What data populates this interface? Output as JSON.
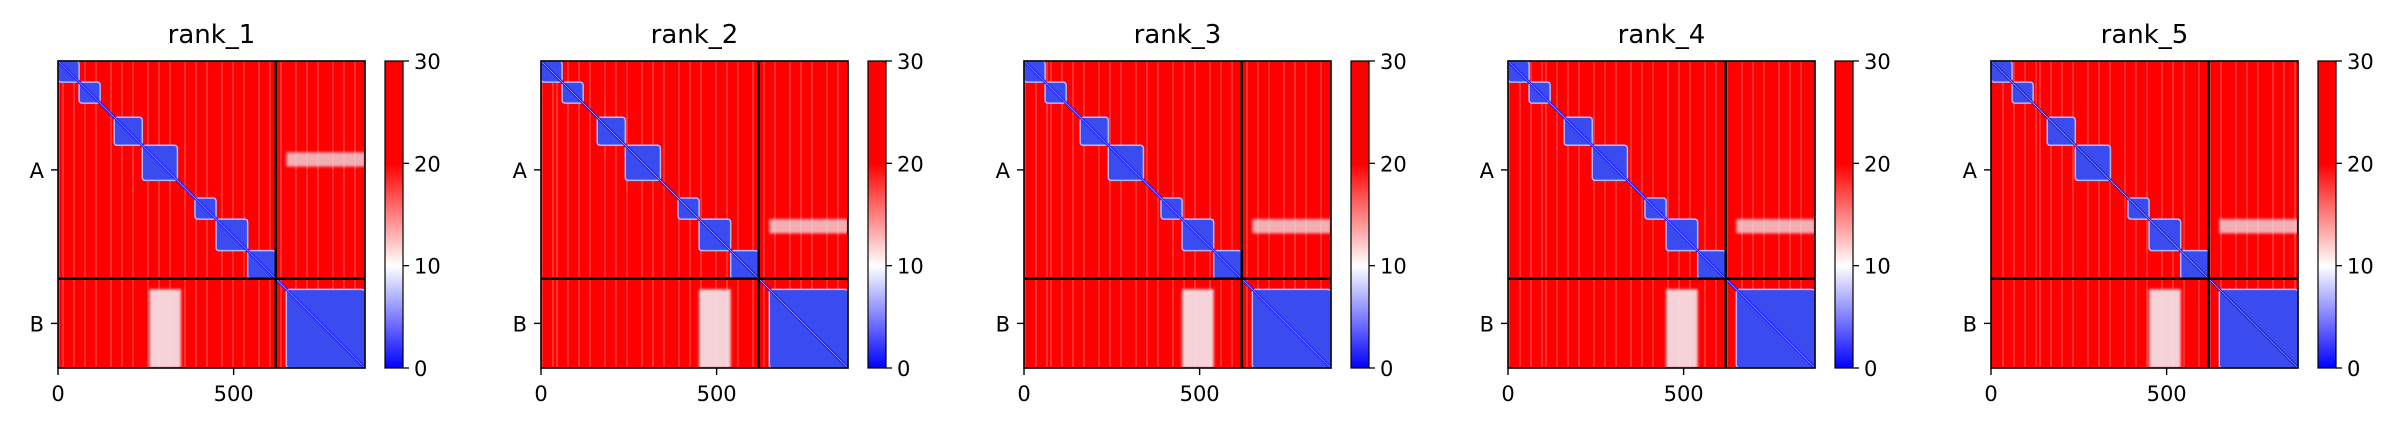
{
  "chart_data": {
    "type": "heatmap",
    "description_of_panels": "five PAE heatmaps",
    "chains": [
      "A",
      "B"
    ],
    "sequence_length": 874,
    "chain_boundary": 620,
    "x_ticks": [
      0,
      500
    ],
    "colorbar": {
      "ticks": [
        0,
        10,
        20,
        30
      ],
      "range": [
        0,
        30
      ],
      "colormap": [
        "#0000ff",
        "#ffffff",
        "#ff0000"
      ]
    },
    "panels": [
      {
        "title": "rank_1",
        "blocks": [
          [
            [
              0,
              60
            ],
            [
              60,
              120
            ]
          ],
          [
            [
              160,
              240
            ]
          ],
          [
            [
              240,
              340
            ]
          ],
          [
            [
              390,
              450
            ],
            [
              450,
              540
            ]
          ],
          [
            [
              540,
              620
            ]
          ],
          [
            [
              650,
              874
            ]
          ]
        ],
        "cross_A_B": [
          [
            [
              260,
              350
            ],
            [
              650,
              874
            ]
          ]
        ]
      },
      {
        "title": "rank_2",
        "blocks": [
          [
            [
              0,
              60
            ],
            [
              60,
              120
            ]
          ],
          [
            [
              160,
              240
            ]
          ],
          [
            [
              240,
              340
            ]
          ],
          [
            [
              390,
              450
            ],
            [
              450,
              540
            ]
          ],
          [
            [
              540,
              620
            ]
          ],
          [
            [
              650,
              874
            ]
          ]
        ],
        "cross_A_B": [
          [
            [
              450,
              540
            ],
            [
              650,
              874
            ]
          ]
        ]
      },
      {
        "title": "rank_3",
        "blocks": [
          [
            [
              0,
              60
            ],
            [
              60,
              120
            ]
          ],
          [
            [
              160,
              240
            ]
          ],
          [
            [
              240,
              340
            ]
          ],
          [
            [
              390,
              450
            ],
            [
              450,
              540
            ]
          ],
          [
            [
              540,
              620
            ]
          ],
          [
            [
              650,
              874
            ]
          ]
        ],
        "cross_A_B": [
          [
            [
              450,
              540
            ],
            [
              650,
              874
            ]
          ]
        ]
      },
      {
        "title": "rank_4",
        "blocks": [
          [
            [
              0,
              60
            ],
            [
              60,
              120
            ]
          ],
          [
            [
              160,
              240
            ]
          ],
          [
            [
              240,
              340
            ]
          ],
          [
            [
              390,
              450
            ],
            [
              450,
              540
            ]
          ],
          [
            [
              540,
              620
            ]
          ],
          [
            [
              650,
              874
            ]
          ]
        ],
        "cross_A_B": [
          [
            [
              450,
              540
            ],
            [
              650,
              874
            ]
          ]
        ]
      },
      {
        "title": "rank_5",
        "blocks": [
          [
            [
              0,
              60
            ],
            [
              60,
              120
            ]
          ],
          [
            [
              160,
              240
            ]
          ],
          [
            [
              240,
              340
            ]
          ],
          [
            [
              390,
              450
            ],
            [
              450,
              540
            ]
          ],
          [
            [
              540,
              620
            ]
          ],
          [
            [
              650,
              874
            ]
          ]
        ],
        "cross_A_B": [
          [
            [
              450,
              540
            ],
            [
              650,
              874
            ]
          ]
        ]
      }
    ]
  }
}
